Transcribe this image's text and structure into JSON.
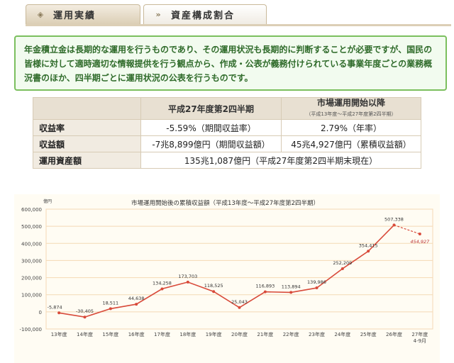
{
  "tabs": [
    {
      "label": "運用実績",
      "active": true
    },
    {
      "label": "資産構成割合",
      "active": false
    }
  ],
  "intro": "年金積立金は長期的な運用を行うものであり、その運用状況も長期的に判断することが必要ですが、国民の皆様に対して適時適切な情報提供を行う観点から、作成・公表が義務付けられている事業年度ごとの業務概況書のほか、四半期ごとに運用状況の公表を行うものです。",
  "table": {
    "col1": "平成27年度第2四半期",
    "col2": "市場運用開始以降",
    "col2_sub": "（平成13年度〜平成27年度第2四半期）",
    "rows": [
      {
        "label": "収益率",
        "v1": "-5.59%（期間収益率）",
        "v2": "2.79%（年率）"
      },
      {
        "label": "収益額",
        "v1": "-7兆8,899億円（期間収益額）",
        "v2": "45兆4,927億円（累積収益額）"
      }
    ],
    "assets_label": "運用資産額",
    "assets_value": "135兆1,087億円（平成27年度第2四半期末現在）"
  },
  "chart_data": {
    "type": "line",
    "title": "市場運用開始後の累積収益額（平成13年度〜平成27年度第2四半期）",
    "ylabel": "億円",
    "ylim": [
      -100000,
      600000
    ],
    "yticks": [
      -100000,
      0,
      100000,
      200000,
      300000,
      400000,
      500000,
      600000
    ],
    "ytick_labels": [
      "-100,000",
      "0",
      "100,000",
      "200,000",
      "300,000",
      "400,000",
      "500,000",
      "600,000"
    ],
    "categories": [
      "13年度",
      "14年度",
      "15年度",
      "16年度",
      "17年度",
      "18年度",
      "19年度",
      "20年度",
      "21年度",
      "22年度",
      "23年度",
      "24年度",
      "25年度",
      "26年度",
      "27年度\n4-9月"
    ],
    "values": [
      -5874,
      -30405,
      18511,
      44638,
      134258,
      173703,
      118525,
      25043,
      116893,
      113894,
      139986,
      252209,
      354415,
      507338,
      454927
    ],
    "labels": [
      "-5,874",
      "-30,405",
      "18,511",
      "44,638",
      "134,258",
      "173,703",
      "118,525",
      "25,043",
      "116,893",
      "113,894",
      "139,986",
      "252,209",
      "354,415",
      "507,338",
      "454,927"
    ],
    "dashed_last_segment": true,
    "grid": true,
    "colors": {
      "line": "#d84a3a",
      "grid": "#f4d9b5",
      "plot_bg": "#fffcf3"
    }
  }
}
